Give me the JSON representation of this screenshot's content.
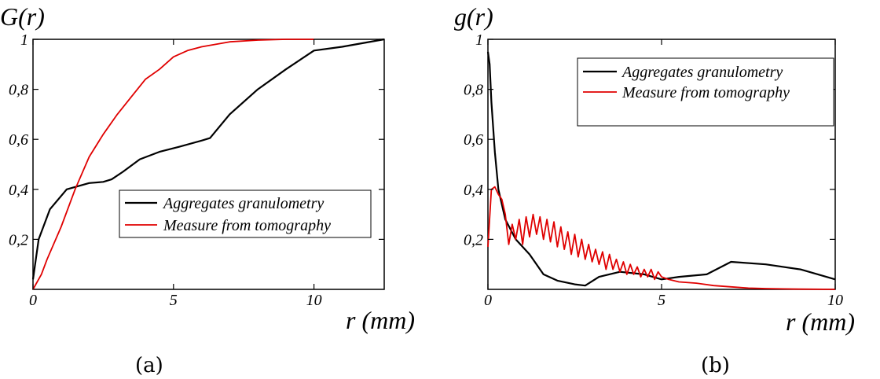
{
  "chart_data": [
    {
      "type": "line",
      "ylabel": "G(r)",
      "xlabel": "r (mm)",
      "caption": "(a)",
      "xlim": [
        0,
        12.5
      ],
      "ylim": [
        0,
        1
      ],
      "xticks": [
        "0",
        "5",
        "10"
      ],
      "yticks": [
        "0,2",
        "0,4",
        "0,6",
        "0,8",
        "1"
      ],
      "legend_position": "center-right",
      "grid": false,
      "series": [
        {
          "name": "Aggregates granulometry",
          "color": "#000000",
          "x": [
            0,
            0.2,
            0.6,
            1.2,
            2.0,
            2.5,
            2.8,
            3.2,
            3.8,
            4.5,
            5.2,
            6.0,
            6.3,
            7.0,
            8.0,
            9.0,
            10.0,
            11.0,
            12.5
          ],
          "y": [
            0.04,
            0.2,
            0.32,
            0.4,
            0.425,
            0.43,
            0.44,
            0.47,
            0.52,
            0.55,
            0.57,
            0.595,
            0.605,
            0.7,
            0.8,
            0.88,
            0.955,
            0.97,
            1.0
          ]
        },
        {
          "name": "Measure from tomography",
          "color": "#e00000",
          "x": [
            0,
            0.3,
            0.5,
            1.0,
            1.5,
            2.0,
            2.5,
            3.0,
            3.5,
            4.0,
            4.5,
            5.0,
            5.5,
            6.0,
            7.0,
            8.0,
            9.0,
            10.0
          ],
          "y": [
            0.0,
            0.06,
            0.12,
            0.25,
            0.4,
            0.53,
            0.62,
            0.7,
            0.77,
            0.84,
            0.88,
            0.93,
            0.955,
            0.97,
            0.99,
            0.997,
            1.0,
            1.0
          ]
        }
      ]
    },
    {
      "type": "line",
      "ylabel": "g(r)",
      "xlabel": "r (mm)",
      "caption": "(b)",
      "xlim": [
        0,
        10
      ],
      "ylim": [
        0,
        1
      ],
      "xticks": [
        "0",
        "5",
        "10"
      ],
      "yticks": [
        "0,2",
        "0,4",
        "0,6",
        "0,8",
        "1"
      ],
      "legend_position": "top-right",
      "grid": false,
      "series": [
        {
          "name": "Aggregates granulometry",
          "color": "#000000",
          "x": [
            0,
            0.05,
            0.1,
            0.2,
            0.3,
            0.5,
            0.8,
            1.2,
            1.6,
            2.0,
            2.5,
            2.8,
            3.2,
            3.8,
            4.5,
            5.0,
            5.5,
            6.3,
            7.0,
            8.0,
            9.0,
            10.0
          ],
          "y": [
            0.95,
            0.9,
            0.75,
            0.55,
            0.4,
            0.28,
            0.2,
            0.14,
            0.06,
            0.035,
            0.02,
            0.015,
            0.05,
            0.07,
            0.06,
            0.04,
            0.05,
            0.06,
            0.11,
            0.1,
            0.08,
            0.04
          ]
        },
        {
          "name": "Measure from tomography",
          "color": "#e00000",
          "x": [
            0,
            0.1,
            0.2,
            0.3,
            0.4,
            0.5,
            0.6,
            0.7,
            0.8,
            0.9,
            1.0,
            1.1,
            1.2,
            1.3,
            1.4,
            1.5,
            1.6,
            1.7,
            1.8,
            1.9,
            2.0,
            2.1,
            2.2,
            2.3,
            2.4,
            2.5,
            2.6,
            2.7,
            2.8,
            2.9,
            3.0,
            3.1,
            3.2,
            3.3,
            3.4,
            3.5,
            3.6,
            3.7,
            3.8,
            3.9,
            4.0,
            4.1,
            4.2,
            4.3,
            4.4,
            4.5,
            4.6,
            4.7,
            4.8,
            4.9,
            5.0,
            5.2,
            5.5,
            6.0,
            6.5,
            7.0,
            7.5,
            8.0,
            8.5,
            9.0,
            10.0
          ],
          "y": [
            0.17,
            0.4,
            0.41,
            0.38,
            0.36,
            0.3,
            0.18,
            0.26,
            0.2,
            0.28,
            0.18,
            0.29,
            0.21,
            0.3,
            0.22,
            0.29,
            0.2,
            0.28,
            0.19,
            0.27,
            0.17,
            0.25,
            0.16,
            0.23,
            0.14,
            0.22,
            0.13,
            0.2,
            0.12,
            0.18,
            0.11,
            0.16,
            0.1,
            0.15,
            0.08,
            0.14,
            0.08,
            0.12,
            0.07,
            0.11,
            0.06,
            0.1,
            0.06,
            0.09,
            0.05,
            0.08,
            0.05,
            0.08,
            0.04,
            0.07,
            0.05,
            0.04,
            0.03,
            0.025,
            0.015,
            0.01,
            0.005,
            0.003,
            0.002,
            0.001,
            0.0
          ]
        }
      ]
    }
  ]
}
